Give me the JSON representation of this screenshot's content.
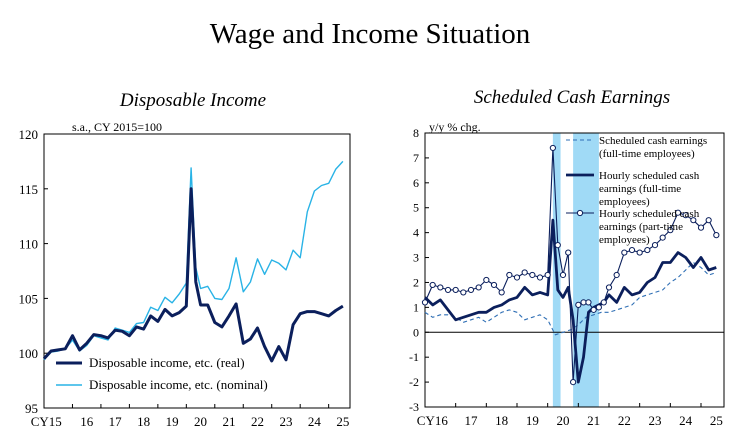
{
  "title": "Wage and Income Situation",
  "chart_data": [
    {
      "type": "line",
      "title": "Disposable Income",
      "unit_label": "s.a., CY 2015=100",
      "ylim": [
        95,
        120
      ],
      "y_ticks": [
        "95",
        "100",
        "105",
        "110",
        "115",
        "120"
      ],
      "x_ticks": [
        "CY15",
        "16",
        "17",
        "18",
        "19",
        "20",
        "21",
        "22",
        "23",
        "24",
        "25"
      ],
      "x_range": [
        2015.0,
        2025.75
      ],
      "legend": "bottom-left",
      "series": [
        {
          "name": "Disposable income, etc. (real)",
          "color": "#0b1f5c",
          "x": [
            2015.0,
            2015.25,
            2015.5,
            2015.75,
            2016.0,
            2016.25,
            2016.5,
            2016.75,
            2017.0,
            2017.25,
            2017.5,
            2017.75,
            2018.0,
            2018.25,
            2018.5,
            2018.75,
            2019.0,
            2019.25,
            2019.5,
            2019.75,
            2020.0,
            2020.167,
            2020.333,
            2020.5,
            2020.75,
            2021.0,
            2021.25,
            2021.5,
            2021.75,
            2022.0,
            2022.25,
            2022.5,
            2022.75,
            2023.0,
            2023.25,
            2023.5,
            2023.75,
            2024.0,
            2024.25,
            2024.5,
            2024.75,
            2025.0,
            2025.25,
            2025.5
          ],
          "values": [
            99.5,
            100.2,
            100.3,
            100.4,
            101.6,
            100.3,
            100.9,
            101.7,
            101.6,
            101.4,
            102.1,
            102.0,
            101.6,
            102.4,
            102.2,
            103.4,
            102.9,
            104.0,
            103.4,
            103.7,
            104.3,
            115.0,
            106.5,
            104.4,
            104.4,
            102.8,
            102.4,
            103.4,
            104.5,
            100.9,
            101.3,
            102.3,
            100.6,
            99.3,
            100.6,
            99.4,
            102.6,
            103.6,
            103.8,
            103.8,
            103.6,
            103.4,
            103.9,
            104.3
          ]
        },
        {
          "name": "Disposable income, etc. (nominal)",
          "color": "#29b3e6",
          "x": [
            2015.0,
            2015.25,
            2015.5,
            2015.75,
            2016.0,
            2016.25,
            2016.5,
            2016.75,
            2017.0,
            2017.25,
            2017.5,
            2017.75,
            2018.0,
            2018.25,
            2018.5,
            2018.75,
            2019.0,
            2019.25,
            2019.5,
            2019.75,
            2020.0,
            2020.167,
            2020.333,
            2020.5,
            2020.75,
            2021.0,
            2021.25,
            2021.5,
            2021.75,
            2022.0,
            2022.25,
            2022.5,
            2022.75,
            2023.0,
            2023.25,
            2023.5,
            2023.75,
            2024.0,
            2024.25,
            2024.5,
            2024.75,
            2025.0,
            2025.25,
            2025.5
          ],
          "values": [
            99.4,
            100.1,
            100.2,
            100.4,
            101.2,
            100.2,
            100.7,
            101.6,
            101.4,
            101.2,
            102.3,
            102.1,
            101.9,
            102.7,
            102.8,
            104.2,
            103.9,
            105.1,
            104.6,
            105.4,
            106.4,
            116.9,
            107.8,
            105.9,
            106.1,
            105.0,
            104.9,
            105.9,
            108.7,
            105.6,
            106.5,
            108.6,
            107.2,
            108.5,
            108.2,
            107.6,
            109.4,
            108.7,
            112.9,
            114.8,
            115.3,
            115.5,
            116.8,
            117.5
          ]
        }
      ]
    },
    {
      "type": "line",
      "title": "Scheduled Cash Earnings",
      "unit_label": "y/y % chg.",
      "ylim": [
        -3,
        8
      ],
      "y_ticks": [
        "-3",
        "-2",
        "-1",
        "0",
        "1",
        "2",
        "3",
        "4",
        "5",
        "6",
        "7",
        "8"
      ],
      "x_ticks": [
        "CY16",
        "17",
        "18",
        "19",
        "20",
        "21",
        "22",
        "23",
        "24",
        "25"
      ],
      "x_range": [
        2016.0,
        2025.75
      ],
      "shaded_periods": [
        [
          2020.17,
          2020.42
        ],
        [
          2020.83,
          2021.67
        ]
      ],
      "legend": "top-right",
      "series": [
        {
          "name": "Scheduled cash earnings (full-time employees)",
          "color": "#2f6fb5",
          "style": "dashed",
          "x": [
            2016.0,
            2016.25,
            2016.5,
            2016.75,
            2017.0,
            2017.25,
            2017.5,
            2017.75,
            2018.0,
            2018.25,
            2018.5,
            2018.75,
            2019.0,
            2019.25,
            2019.5,
            2019.75,
            2020.0,
            2020.25,
            2020.5,
            2020.75,
            2021.0,
            2021.25,
            2021.5,
            2021.75,
            2022.0,
            2022.25,
            2022.5,
            2022.75,
            2023.0,
            2023.25,
            2023.5,
            2023.75,
            2024.0,
            2024.25,
            2024.5,
            2024.75,
            2025.0,
            2025.25,
            2025.5
          ],
          "values": [
            0.8,
            0.6,
            0.7,
            0.7,
            0.6,
            0.4,
            0.5,
            0.6,
            0.4,
            0.6,
            0.8,
            0.9,
            0.8,
            0.5,
            0.6,
            0.7,
            0.5,
            -0.1,
            0.0,
            0.1,
            0.3,
            0.6,
            0.7,
            0.8,
            0.8,
            0.9,
            1.0,
            1.1,
            1.4,
            1.5,
            1.6,
            1.7,
            2.0,
            2.2,
            2.5,
            2.8,
            2.6,
            2.3,
            2.4
          ]
        },
        {
          "name": "Hourly scheduled cash earnings (full-time employees)",
          "color": "#0b1f5c",
          "style": "solid",
          "x": [
            2016.0,
            2016.25,
            2016.5,
            2016.75,
            2017.0,
            2017.25,
            2017.5,
            2017.75,
            2018.0,
            2018.25,
            2018.5,
            2018.75,
            2019.0,
            2019.25,
            2019.5,
            2019.75,
            2020.0,
            2020.17,
            2020.33,
            2020.5,
            2020.67,
            2020.83,
            2021.0,
            2021.17,
            2021.33,
            2021.5,
            2021.67,
            2021.83,
            2022.0,
            2022.25,
            2022.5,
            2022.75,
            2023.0,
            2023.25,
            2023.5,
            2023.75,
            2024.0,
            2024.25,
            2024.5,
            2024.75,
            2025.0,
            2025.25,
            2025.5
          ],
          "values": [
            1.4,
            1.1,
            1.3,
            0.9,
            0.5,
            0.6,
            0.7,
            0.8,
            0.8,
            1.0,
            1.1,
            1.3,
            1.4,
            1.8,
            1.5,
            1.6,
            1.5,
            4.5,
            1.7,
            1.4,
            1.8,
            0.5,
            -2.0,
            -1.0,
            0.8,
            1.0,
            1.1,
            1.2,
            1.5,
            1.2,
            1.8,
            1.5,
            1.6,
            2.0,
            2.2,
            2.8,
            2.8,
            3.2,
            3.0,
            2.6,
            3.0,
            2.5,
            2.6
          ]
        },
        {
          "name": "Hourly scheduled cash earnings (part-time employees)",
          "color": "#0b1f5c",
          "style": "solid-markers",
          "x": [
            2016.0,
            2016.25,
            2016.5,
            2016.75,
            2017.0,
            2017.25,
            2017.5,
            2017.75,
            2018.0,
            2018.25,
            2018.5,
            2018.75,
            2019.0,
            2019.25,
            2019.5,
            2019.75,
            2020.0,
            2020.17,
            2020.33,
            2020.5,
            2020.67,
            2020.83,
            2021.0,
            2021.17,
            2021.33,
            2021.5,
            2021.67,
            2021.83,
            2022.0,
            2022.25,
            2022.5,
            2022.75,
            2023.0,
            2023.25,
            2023.5,
            2023.75,
            2024.0,
            2024.25,
            2024.5,
            2024.75,
            2025.0,
            2025.25,
            2025.5
          ],
          "values": [
            1.2,
            1.9,
            1.8,
            1.7,
            1.7,
            1.6,
            1.7,
            1.8,
            2.1,
            1.9,
            1.6,
            2.3,
            2.2,
            2.4,
            2.3,
            2.2,
            2.3,
            7.4,
            3.5,
            2.3,
            3.2,
            -2.0,
            1.1,
            1.2,
            1.2,
            0.9,
            1.0,
            1.2,
            1.8,
            2.3,
            3.2,
            3.3,
            3.2,
            3.3,
            3.5,
            3.8,
            4.1,
            4.8,
            4.7,
            4.5,
            4.2,
            4.5,
            3.9
          ]
        }
      ]
    }
  ]
}
